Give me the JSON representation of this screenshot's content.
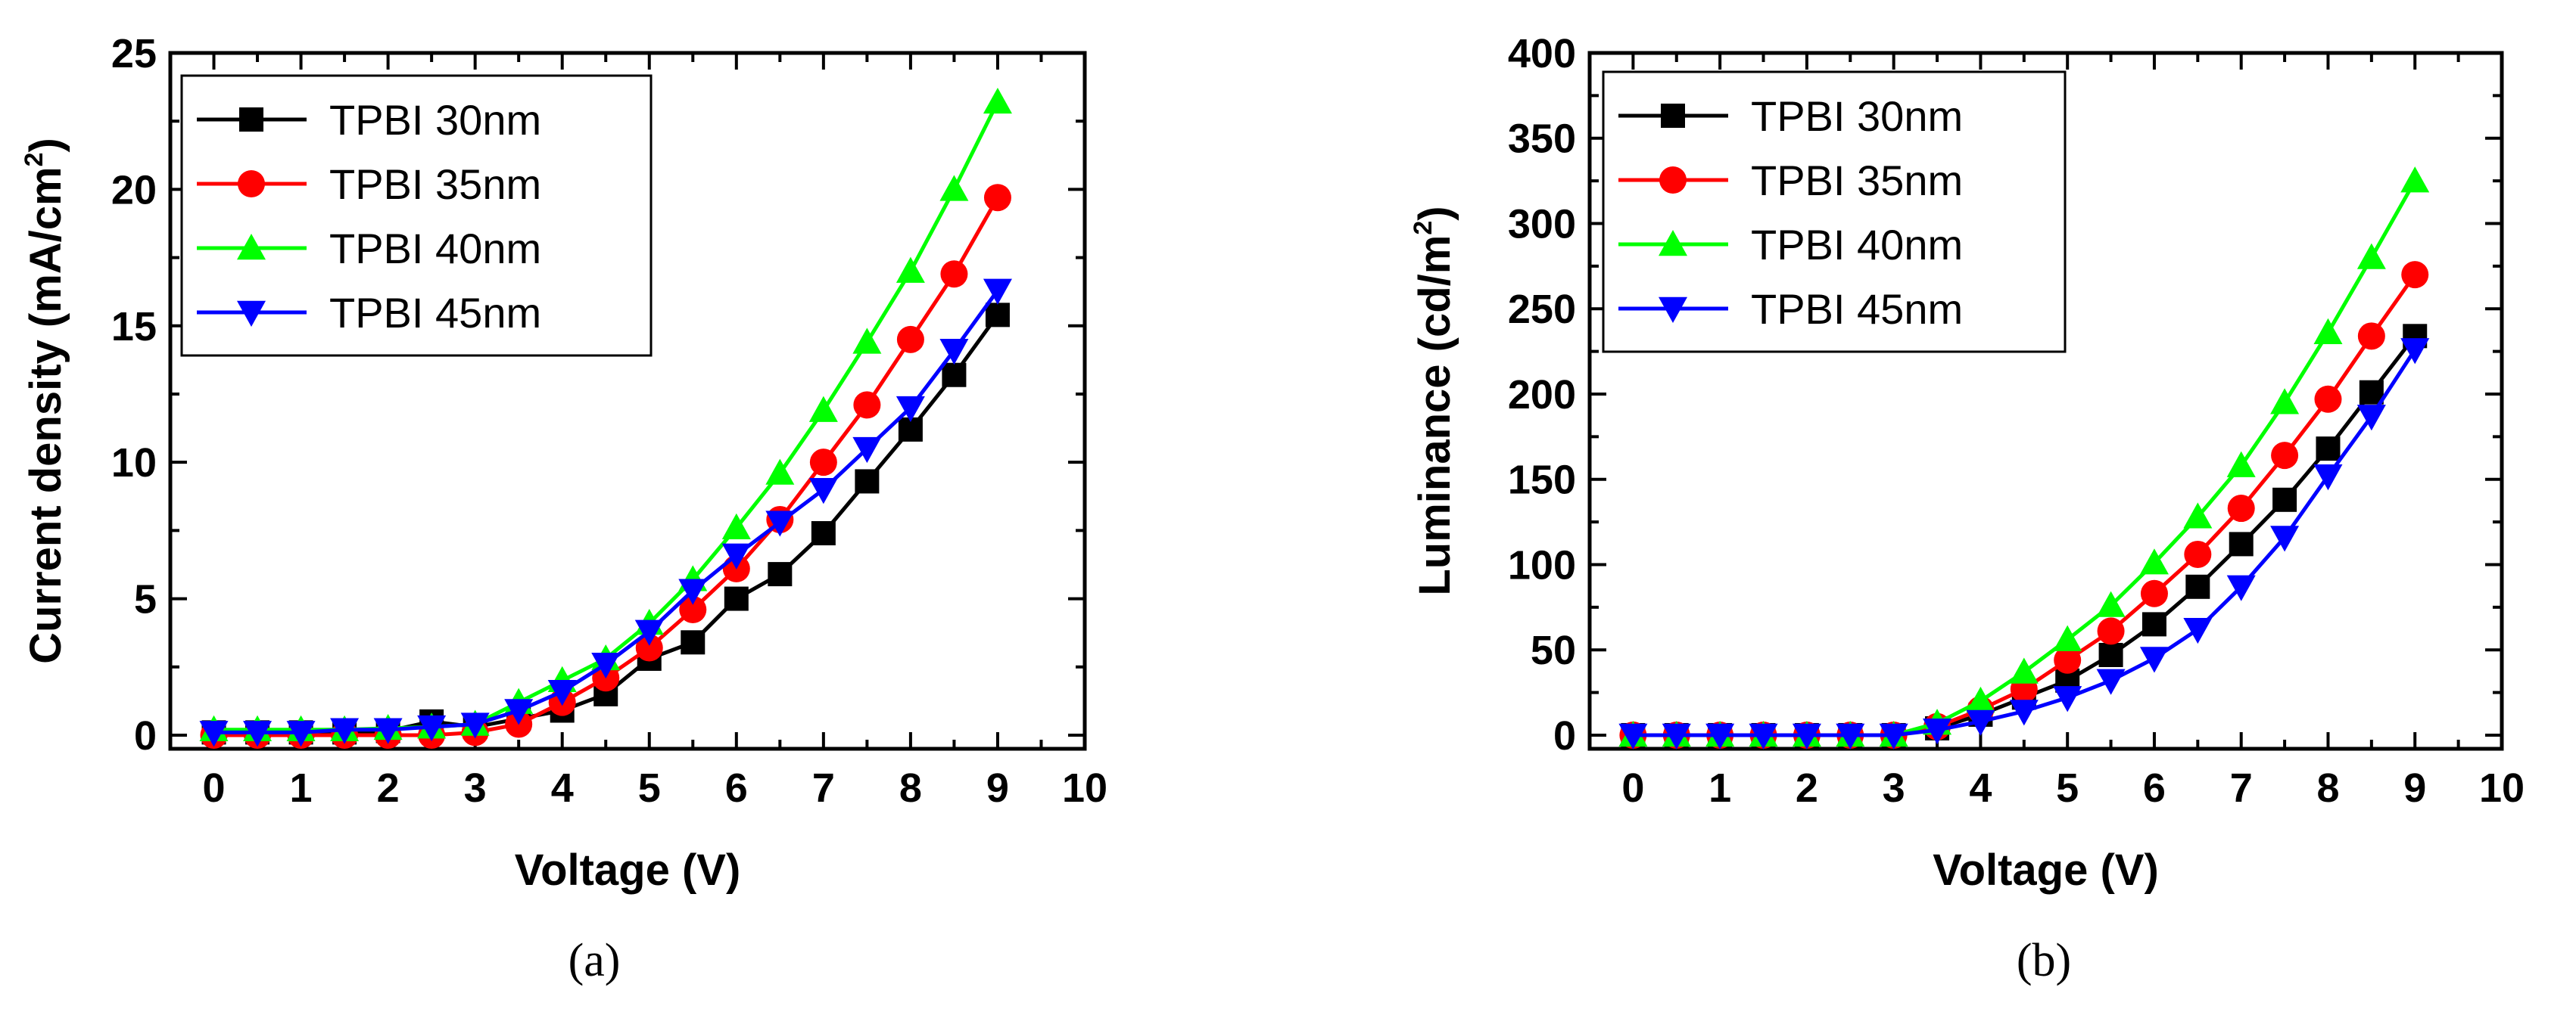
{
  "chart_data": [
    {
      "type": "line",
      "caption": "(a)",
      "xlabel": "Voltage (V)",
      "ylabel": "Current density (mA/cm",
      "ylabel_sup": "2",
      "ylabel_tail": ")",
      "xlim": [
        -0.5,
        10
      ],
      "ylim": [
        -0.5,
        25
      ],
      "xticks": [
        "0",
        "1",
        "2",
        "3",
        "4",
        "5",
        "6",
        "7",
        "8",
        "9",
        "10"
      ],
      "yticks": [
        "0",
        "5",
        "10",
        "15",
        "20",
        "25"
      ],
      "legend_position": "top-left",
      "x": [
        0,
        0.5,
        1,
        1.5,
        2,
        2.5,
        3,
        3.5,
        4,
        4.5,
        5,
        5.5,
        6,
        6.5,
        7,
        7.5,
        8,
        8.5,
        9
      ],
      "series": [
        {
          "name": "TPBI 30nm",
          "color": "#000000",
          "marker": "square",
          "values": [
            0.1,
            0.1,
            0.1,
            0.1,
            0.15,
            0.5,
            0.3,
            0.6,
            0.9,
            1.5,
            2.8,
            3.4,
            5.0,
            5.9,
            7.4,
            9.3,
            11.2,
            13.2,
            15.4
          ]
        },
        {
          "name": "TPBI 35nm",
          "color": "#ff0000",
          "marker": "circle",
          "values": [
            0,
            0,
            0,
            0,
            0,
            0,
            0.1,
            0.4,
            1.2,
            2.1,
            3.2,
            4.6,
            6.1,
            7.9,
            10.0,
            12.1,
            14.5,
            16.9,
            19.7
          ]
        },
        {
          "name": "TPBI 40nm",
          "color": "#00ff00",
          "marker": "triangle-up",
          "values": [
            0.2,
            0.2,
            0.2,
            0.2,
            0.25,
            0.3,
            0.4,
            1.2,
            2.0,
            2.8,
            4.1,
            5.7,
            7.6,
            9.6,
            11.9,
            14.4,
            17.0,
            20.0,
            23.2
          ]
        },
        {
          "name": "TPBI 45nm",
          "color": "#0000ff",
          "marker": "triangle-down",
          "values": [
            0.1,
            0.1,
            0.1,
            0.2,
            0.2,
            0.3,
            0.4,
            0.9,
            1.6,
            2.6,
            3.8,
            5.3,
            6.6,
            7.8,
            9.0,
            10.5,
            12.0,
            14.1,
            16.3
          ]
        }
      ]
    },
    {
      "type": "line",
      "caption": "(b)",
      "xlabel": "Voltage (V)",
      "ylabel": "Luminance (cd/m",
      "ylabel_sup": "2",
      "ylabel_tail": ")",
      "xlim": [
        -0.5,
        10
      ],
      "ylim": [
        -8,
        400
      ],
      "xticks": [
        "0",
        "1",
        "2",
        "3",
        "4",
        "5",
        "6",
        "7",
        "8",
        "9",
        "10"
      ],
      "yticks": [
        "0",
        "50",
        "100",
        "150",
        "200",
        "250",
        "300",
        "350",
        "400"
      ],
      "legend_position": "top-left",
      "x": [
        0,
        0.5,
        1,
        1.5,
        2,
        2.5,
        3,
        3.5,
        4,
        4.5,
        5,
        5.5,
        6,
        6.5,
        7,
        7.5,
        8,
        8.5,
        9
      ],
      "series": [
        {
          "name": "TPBI 30nm",
          "color": "#000000",
          "marker": "square",
          "values": [
            0,
            0,
            0,
            0,
            0,
            0,
            0,
            4,
            12,
            22,
            32,
            47,
            65,
            87,
            112,
            138,
            168,
            201,
            234
          ]
        },
        {
          "name": "TPBI 35nm",
          "color": "#ff0000",
          "marker": "circle",
          "values": [
            0,
            0,
            0,
            0,
            0,
            0,
            0,
            5,
            15,
            27,
            44,
            61,
            83,
            106,
            133,
            164,
            197,
            234,
            270
          ]
        },
        {
          "name": "TPBI 40nm",
          "color": "#00ff00",
          "marker": "triangle-up",
          "values": [
            0,
            0,
            0,
            0,
            0,
            0,
            0,
            7,
            20,
            37,
            56,
            76,
            101,
            128,
            158,
            195,
            236,
            280,
            325
          ]
        },
        {
          "name": "TPBI 45nm",
          "color": "#0000ff",
          "marker": "triangle-down",
          "values": [
            0,
            0,
            0,
            0,
            0,
            0,
            0,
            3,
            8,
            14,
            22,
            32,
            45,
            62,
            87,
            116,
            152,
            187,
            226
          ]
        }
      ]
    }
  ]
}
